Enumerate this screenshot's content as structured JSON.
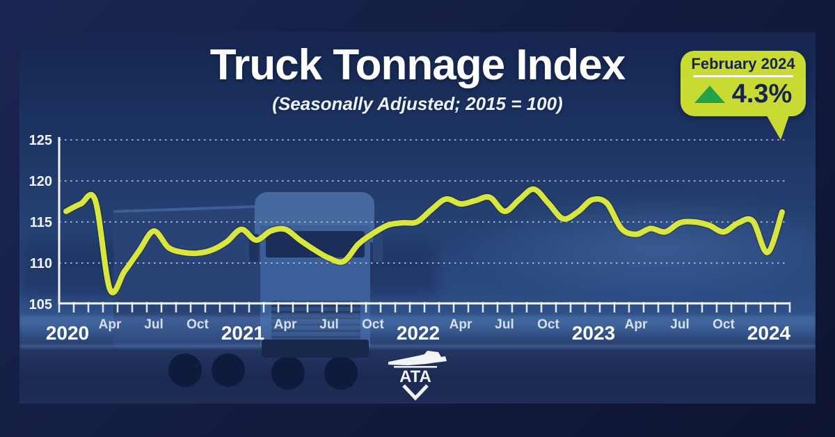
{
  "title": "Truck Tonnage Index",
  "subtitle": "(Seasonally Adjusted; 2015 = 100)",
  "badge": {
    "period": "February 2024",
    "change": "4.3%",
    "direction": "up"
  },
  "logo": {
    "text": "ATA"
  },
  "colors": {
    "line": "#d9e63d",
    "badge_bg": "#c9da33",
    "badge_text": "#15234d",
    "arrow_up": "#23a24c",
    "axis": "#f2f5fa",
    "grid": "#cfd8e8",
    "year_label": "#ffffff",
    "month_label": "#dfe6f2",
    "background": "#121b3e"
  },
  "chart_data": {
    "type": "line",
    "title": "Truck Tonnage Index",
    "subtitle": "(Seasonally Adjusted; 2015 = 100)",
    "x_unit": "month",
    "months": [
      "Jan 2020",
      "Feb 2020",
      "Mar 2020",
      "Apr 2020",
      "May 2020",
      "Jun 2020",
      "Jul 2020",
      "Aug 2020",
      "Sep 2020",
      "Oct 2020",
      "Nov 2020",
      "Dec 2020",
      "Jan 2021",
      "Feb 2021",
      "Mar 2021",
      "Apr 2021",
      "May 2021",
      "Jun 2021",
      "Jul 2021",
      "Aug 2021",
      "Sep 2021",
      "Oct 2021",
      "Nov 2021",
      "Dec 2021",
      "Jan 2022",
      "Feb 2022",
      "Mar 2022",
      "Apr 2022",
      "May 2022",
      "Jun 2022",
      "Jul 2022",
      "Aug 2022",
      "Sep 2022",
      "Oct 2022",
      "Nov 2022",
      "Dec 2022",
      "Jan 2023",
      "Feb 2023",
      "Mar 2023",
      "Apr 2023",
      "May 2023",
      "Jun 2023",
      "Jul 2023",
      "Aug 2023",
      "Sep 2023",
      "Oct 2023",
      "Nov 2023",
      "Dec 2023",
      "Jan 2024",
      "Feb 2024"
    ],
    "values": [
      116.3,
      117.2,
      117.6,
      106.8,
      109.0,
      111.5,
      113.9,
      111.9,
      111.3,
      111.2,
      111.6,
      112.6,
      114.1,
      112.8,
      113.9,
      114.1,
      112.8,
      111.6,
      110.6,
      110.2,
      112.3,
      113.6,
      114.6,
      114.9,
      115.0,
      116.5,
      117.8,
      117.2,
      117.6,
      118.0,
      116.3,
      117.7,
      119.0,
      117.3,
      115.4,
      116.2,
      117.7,
      117.3,
      114.2,
      113.5,
      114.2,
      113.8,
      114.9,
      115.0,
      114.6,
      113.8,
      114.9,
      115.1,
      111.3,
      116.2
    ],
    "ylim": [
      105,
      125
    ],
    "yticks": [
      105,
      110,
      115,
      120,
      125
    ],
    "year_ticks": [
      {
        "label": "2020",
        "index": 0
      },
      {
        "label": "2021",
        "index": 12
      },
      {
        "label": "2022",
        "index": 24
      },
      {
        "label": "2023",
        "index": 36
      },
      {
        "label": "2024",
        "index": 48
      }
    ],
    "month_ticks": [
      {
        "label": "Apr",
        "index": 3
      },
      {
        "label": "Jul",
        "index": 6
      },
      {
        "label": "Oct",
        "index": 9
      },
      {
        "label": "Apr",
        "index": 15
      },
      {
        "label": "Jul",
        "index": 18
      },
      {
        "label": "Oct",
        "index": 21
      },
      {
        "label": "Apr",
        "index": 27
      },
      {
        "label": "Jul",
        "index": 30
      },
      {
        "label": "Oct",
        "index": 33
      },
      {
        "label": "Apr",
        "index": 39
      },
      {
        "label": "Jul",
        "index": 42
      },
      {
        "label": "Oct",
        "index": 45
      }
    ],
    "grid": "dotted-horizontal",
    "legend": "none",
    "line_color": "#d9e63d",
    "annotation": {
      "label": "February 2024",
      "change_pct": 4.3,
      "direction": "up"
    }
  }
}
